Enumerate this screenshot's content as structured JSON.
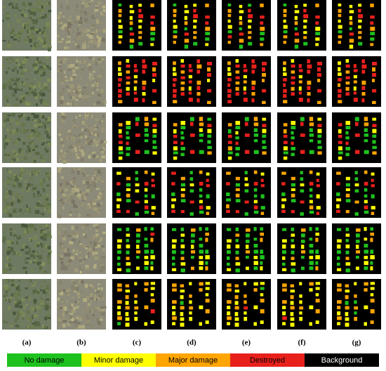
{
  "column_labels": [
    "(a)",
    "(b)",
    "(c)",
    "(d)",
    "(e)",
    "(f)",
    "(g)"
  ],
  "legend": {
    "items": [
      {
        "label": "No damage",
        "color": "#1ec21e"
      },
      {
        "label": "Minor damage",
        "color": "#ffff00"
      },
      {
        "label": "Major damage",
        "color": "#ffa500"
      },
      {
        "label": "Destroyed",
        "color": "#e8201c"
      },
      {
        "label": "Background",
        "color": "#000000"
      }
    ]
  }
}
